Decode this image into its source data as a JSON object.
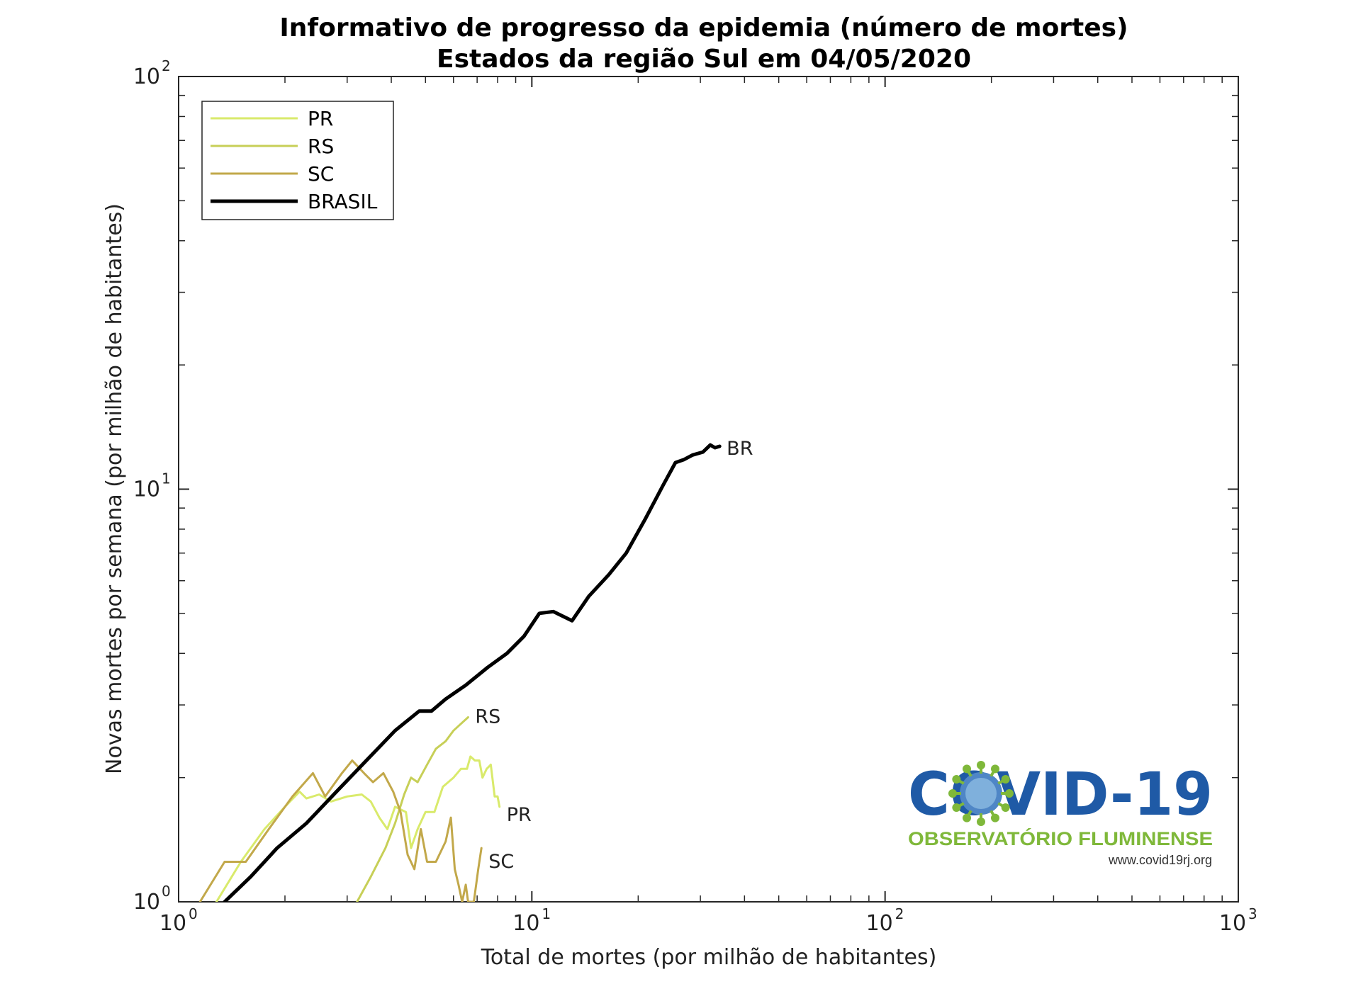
{
  "chart_data": {
    "type": "line",
    "title": "Informativo de progresso da epidemia (número de mortes)",
    "subtitle": "Estados da região Sul em 04/05/2020",
    "xlabel": "Total de mortes (por milhão de habitantes)",
    "ylabel": "Novas mortes por semana (por milhão de habitantes)",
    "xscale": "log",
    "yscale": "log",
    "xlim": [
      1,
      1000
    ],
    "ylim": [
      1,
      100
    ],
    "x_ticks": [
      {
        "base": "10",
        "exp": "0"
      },
      {
        "base": "10",
        "exp": "1"
      },
      {
        "base": "10",
        "exp": "2"
      },
      {
        "base": "10",
        "exp": "3"
      }
    ],
    "y_ticks": [
      {
        "base": "10",
        "exp": "0"
      },
      {
        "base": "10",
        "exp": "1"
      },
      {
        "base": "10",
        "exp": "2"
      }
    ],
    "grid": false,
    "legend": {
      "placement": "top-left",
      "entries": [
        "PR",
        "RS",
        "SC",
        "BRASIL"
      ]
    },
    "series": [
      {
        "name": "PR",
        "color": "#d9ea6b",
        "end_label": "PR",
        "points": [
          [
            1.28,
            1.0
          ],
          [
            1.5,
            1.25
          ],
          [
            1.75,
            1.5
          ],
          [
            2.0,
            1.7
          ],
          [
            2.2,
            1.85
          ],
          [
            2.3,
            1.78
          ],
          [
            2.5,
            1.82
          ],
          [
            2.7,
            1.75
          ],
          [
            3.0,
            1.8
          ],
          [
            3.3,
            1.82
          ],
          [
            3.5,
            1.75
          ],
          [
            3.7,
            1.6
          ],
          [
            3.9,
            1.5
          ],
          [
            4.1,
            1.7
          ],
          [
            4.4,
            1.65
          ],
          [
            4.55,
            1.35
          ],
          [
            4.75,
            1.5
          ],
          [
            5.0,
            1.65
          ],
          [
            5.3,
            1.65
          ],
          [
            5.6,
            1.9
          ],
          [
            6.0,
            2.0
          ],
          [
            6.3,
            2.1
          ],
          [
            6.55,
            2.1
          ],
          [
            6.7,
            2.25
          ],
          [
            6.9,
            2.2
          ],
          [
            7.1,
            2.2
          ],
          [
            7.25,
            2.0
          ],
          [
            7.45,
            2.1
          ],
          [
            7.65,
            2.15
          ],
          [
            7.85,
            1.8
          ],
          [
            8.0,
            1.8
          ],
          [
            8.1,
            1.7
          ]
        ]
      },
      {
        "name": "RS",
        "color": "#c7cf57",
        "end_label": "RS",
        "points": [
          [
            3.2,
            1.0
          ],
          [
            3.5,
            1.15
          ],
          [
            3.85,
            1.35
          ],
          [
            4.1,
            1.55
          ],
          [
            4.35,
            1.82
          ],
          [
            4.55,
            2.0
          ],
          [
            4.75,
            1.95
          ],
          [
            5.05,
            2.15
          ],
          [
            5.35,
            2.35
          ],
          [
            5.7,
            2.45
          ],
          [
            6.0,
            2.6
          ],
          [
            6.3,
            2.7
          ],
          [
            6.6,
            2.8
          ]
        ]
      },
      {
        "name": "SC",
        "color": "#c2a84a",
        "end_label": "SC",
        "points": [
          [
            1.15,
            1.0
          ],
          [
            1.35,
            1.25
          ],
          [
            1.55,
            1.25
          ],
          [
            1.8,
            1.5
          ],
          [
            2.1,
            1.8
          ],
          [
            2.4,
            2.05
          ],
          [
            2.6,
            1.8
          ],
          [
            2.9,
            2.05
          ],
          [
            3.1,
            2.2
          ],
          [
            3.35,
            2.05
          ],
          [
            3.55,
            1.95
          ],
          [
            3.8,
            2.05
          ],
          [
            4.05,
            1.85
          ],
          [
            4.25,
            1.65
          ],
          [
            4.45,
            1.3
          ],
          [
            4.65,
            1.2
          ],
          [
            4.85,
            1.5
          ],
          [
            5.05,
            1.25
          ],
          [
            5.35,
            1.25
          ],
          [
            5.7,
            1.4
          ],
          [
            5.9,
            1.6
          ],
          [
            6.05,
            1.2
          ],
          [
            6.2,
            1.1
          ],
          [
            6.35,
            1.0
          ],
          [
            6.5,
            1.1
          ],
          [
            6.6,
            1.0
          ],
          [
            6.85,
            1.0
          ],
          [
            7.05,
            1.2
          ],
          [
            7.2,
            1.35
          ]
        ]
      },
      {
        "name": "BRASIL",
        "color": "#000000",
        "end_label": "BR",
        "points": [
          [
            1.35,
            1.0
          ],
          [
            1.6,
            1.15
          ],
          [
            1.9,
            1.35
          ],
          [
            2.3,
            1.55
          ],
          [
            2.8,
            1.85
          ],
          [
            3.4,
            2.2
          ],
          [
            4.1,
            2.6
          ],
          [
            4.8,
            2.9
          ],
          [
            5.2,
            2.9
          ],
          [
            5.7,
            3.1
          ],
          [
            6.5,
            3.35
          ],
          [
            7.5,
            3.7
          ],
          [
            8.5,
            4.0
          ],
          [
            9.5,
            4.4
          ],
          [
            10.5,
            5.0
          ],
          [
            11.5,
            5.05
          ],
          [
            13.0,
            4.8
          ],
          [
            14.5,
            5.5
          ],
          [
            16.5,
            6.2
          ],
          [
            18.5,
            7.0
          ],
          [
            21.0,
            8.5
          ],
          [
            23.5,
            10.2
          ],
          [
            25.5,
            11.6
          ],
          [
            27.0,
            11.8
          ],
          [
            28.5,
            12.1
          ],
          [
            30.5,
            12.3
          ],
          [
            32.0,
            12.8
          ],
          [
            33.0,
            12.6
          ],
          [
            34.0,
            12.7
          ]
        ]
      }
    ]
  },
  "logo": {
    "brand": "COVID-19",
    "subtitle": "OBSERVATÓRIO FLUMINENSE",
    "url": "www.covid19rj.org"
  }
}
